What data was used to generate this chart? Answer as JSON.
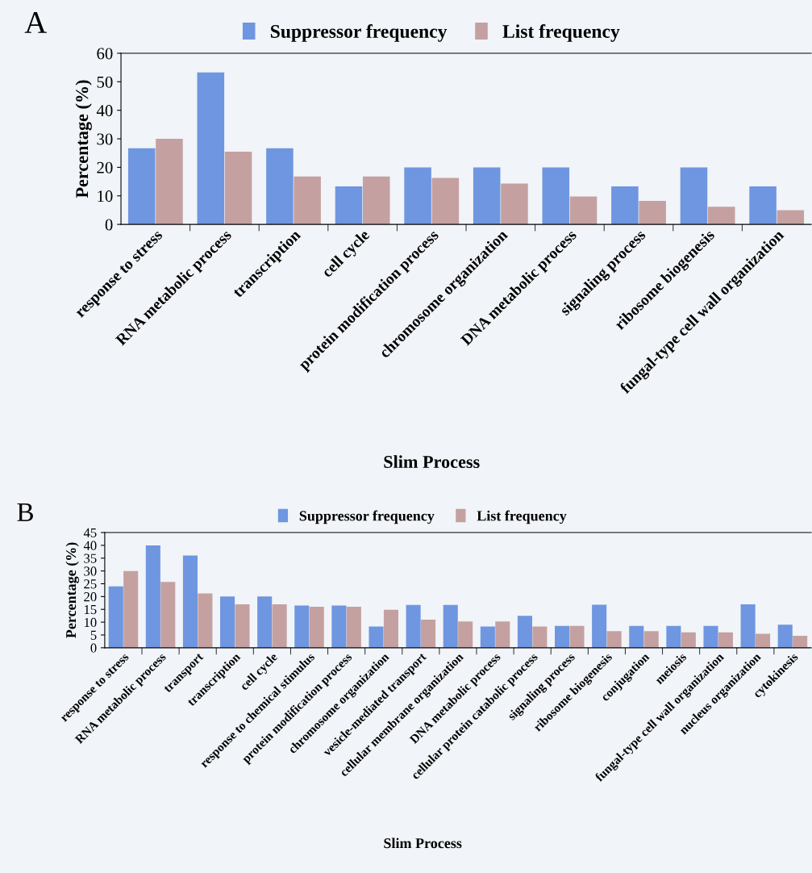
{
  "chart_data": [
    {
      "type": "bar",
      "xlabel": "Slim Process",
      "ylabel": "Percentage (%)",
      "annotations": [
        "A"
      ],
      "legend": "top",
      "categories": [
        "response to stress",
        "RNA metabolic process",
        "transcription",
        "cell cycle",
        "protein modification process",
        "chromosome organization",
        "DNA metabolic process",
        "signaling process",
        "ribosome biogenesis",
        "fungal-type cell wall organization"
      ],
      "series": [
        {
          "name": "Suppressor frequency",
          "color": "#6f96e0",
          "values": [
            26.7,
            53.3,
            26.7,
            13.3,
            20,
            20,
            20,
            13.3,
            20,
            13.3
          ]
        },
        {
          "name": "List frequency",
          "color": "#c4a1a0",
          "values": [
            30,
            25.5,
            16.8,
            16.8,
            16.3,
            14.3,
            9.8,
            8.2,
            6.2,
            5
          ]
        }
      ],
      "ylim": [
        0,
        60
      ],
      "yticks": [
        0,
        10,
        20,
        30,
        40,
        50,
        60
      ],
      "grid": false
    },
    {
      "type": "bar",
      "xlabel": "Slim Process",
      "ylabel": "Percentage (%)",
      "annotations": [
        "B"
      ],
      "legend": "top",
      "categories": [
        "response to stress",
        "RNA metabolic process",
        "transport",
        "transcription",
        "cell cycle",
        "response to chemical stimulus",
        "protein modification process",
        "chromosome organization",
        "vesicle-mediated transport",
        "cellular membrane organization",
        "DNA metabolic process",
        "cellular protein catabolic process",
        "signaling process",
        "ribosome biogenesis",
        "conjugation",
        "meiosis",
        "fungal-type cell wall organization",
        "nucleus organization",
        "cytokinesis"
      ],
      "series": [
        {
          "name": "Suppressor frequency",
          "color": "#6f96e0",
          "values": [
            24,
            40,
            36,
            20,
            20,
            16.5,
            16.5,
            8.3,
            16.7,
            16.7,
            8.3,
            12.5,
            8.5,
            16.8,
            8.5,
            8.5,
            8.5,
            17,
            9
          ]
        },
        {
          "name": "List frequency",
          "color": "#c4a1a0",
          "values": [
            30,
            25.7,
            21.2,
            17,
            17,
            16,
            16,
            14.8,
            11,
            10.3,
            10.3,
            8.3,
            8.5,
            6.5,
            6.5,
            6,
            6,
            5.5,
            4.7
          ]
        }
      ],
      "ylim": [
        0,
        45
      ],
      "yticks": [
        0,
        5,
        10,
        15,
        20,
        25,
        30,
        35,
        40,
        45
      ],
      "grid": false
    }
  ]
}
